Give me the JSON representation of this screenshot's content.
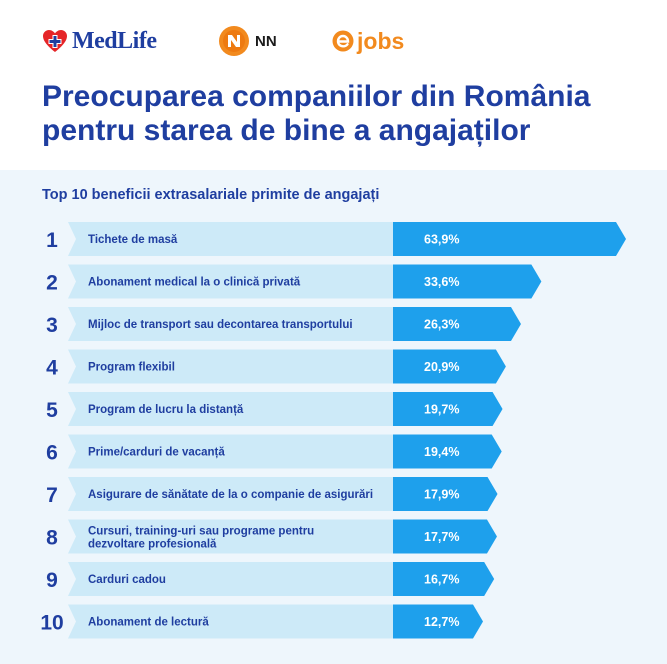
{
  "header": {
    "logos": {
      "medlife": "MedLife",
      "nn": "NN",
      "jobs": "jobs"
    },
    "title_line1": "Preocuparea companiilor din România",
    "title_line2": "pentru starea de bine a angajaților"
  },
  "colors": {
    "navy": "#1f3ea0",
    "bar_light": "#cdeaf8",
    "bar_dark": "#1ea0ec",
    "panel_bg": "#eef6fc",
    "medlife_red": "#e52528",
    "nn_orange": "#f28a1e"
  },
  "chart_data": {
    "type": "bar",
    "orientation": "horizontal",
    "title": "Top 10 beneficii extrasalariale primite de angajați",
    "categories": [
      "Tichete de masă",
      "Abonament medical la o clinică privată",
      "Mijloc de transport sau decontarea transportului",
      "Program flexibil",
      "Program de lucru la distanță",
      "Prime/carduri de vacanță",
      "Asigurare de sănătate de la o companie de asigurări",
      "Cursuri, training-uri sau programe pentru dezvoltare profesională",
      "Carduri cadou",
      "Abonament de lectură"
    ],
    "ranks": [
      "1",
      "2",
      "3",
      "4",
      "5",
      "6",
      "7",
      "8",
      "9",
      "10"
    ],
    "values": [
      63.9,
      33.6,
      26.3,
      20.9,
      19.7,
      19.4,
      17.9,
      17.7,
      16.7,
      12.7
    ],
    "value_labels": [
      "63,9%",
      "33,6%",
      "26,3%",
      "20,9%",
      "19,7%",
      "19,4%",
      "17,9%",
      "17,7%",
      "16,7%",
      "12,7%"
    ]
  }
}
